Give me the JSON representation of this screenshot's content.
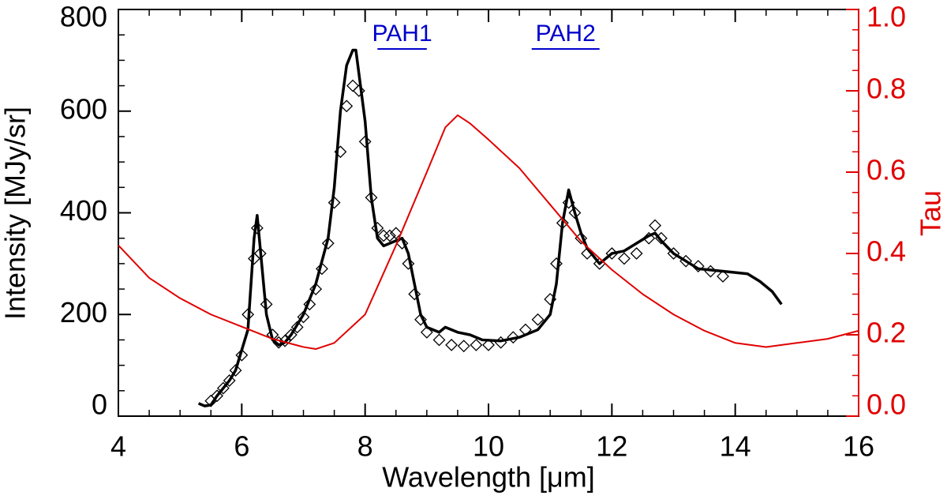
{
  "chart_data": {
    "type": "line",
    "xlabel": "Wavelength [μm]",
    "ylabel": "Intensity [MJy/sr]",
    "y2label": "Tau",
    "xlim": [
      4,
      16
    ],
    "xticks": [
      4,
      6,
      8,
      10,
      12,
      14,
      16
    ],
    "xminor_step": 0.5,
    "ylim": [
      0,
      800
    ],
    "yticks": [
      0,
      200,
      400,
      600,
      800
    ],
    "yminor_step": 50,
    "y2lim": [
      0,
      1
    ],
    "y2ticks": [
      {
        "value": 0,
        "label": "0.0"
      },
      {
        "value": 0.2,
        "label": "0.2"
      },
      {
        "value": 0.4,
        "label": "0.4"
      },
      {
        "value": 0.6,
        "label": "0.6"
      },
      {
        "value": 0.8,
        "label": "0.8"
      },
      {
        "value": 1,
        "label": "1.0"
      }
    ],
    "y2minor_step": 0.05,
    "y2color": "#e00000",
    "annotations": [
      {
        "text": "PAH1",
        "x": [
          8.2,
          9.0
        ],
        "color": "#0000cc"
      },
      {
        "text": "PAH2",
        "x": [
          10.7,
          11.8
        ],
        "color": "#0000cc"
      }
    ],
    "series": [
      {
        "style": "line",
        "color": "#000000",
        "x": [
          5.3,
          5.4,
          5.5,
          5.6,
          5.7,
          5.8,
          5.9,
          6.0,
          6.1,
          6.2,
          6.25,
          6.3,
          6.4,
          6.5,
          6.6,
          6.7,
          6.8,
          6.9,
          7.0,
          7.2,
          7.4,
          7.5,
          7.6,
          7.7,
          7.8,
          7.85,
          8.0,
          8.1,
          8.2,
          8.3,
          8.4,
          8.5,
          8.6,
          8.7,
          8.8,
          8.9,
          9.0,
          9.2,
          9.3,
          9.5,
          9.7,
          9.9,
          10.2,
          10.5,
          10.8,
          11.0,
          11.1,
          11.2,
          11.3,
          11.4,
          11.5,
          11.6,
          11.8,
          12.0,
          12.2,
          12.4,
          12.6,
          12.7,
          12.8,
          13.0,
          13.4,
          13.8,
          14.2,
          14.4,
          14.6,
          14.75
        ],
        "values": [
          25,
          20,
          22,
          40,
          55,
          70,
          90,
          130,
          170,
          350,
          395,
          330,
          200,
          150,
          140,
          145,
          160,
          180,
          200,
          260,
          350,
          450,
          600,
          690,
          720,
          720,
          580,
          430,
          350,
          335,
          340,
          345,
          350,
          320,
          260,
          200,
          175,
          165,
          175,
          165,
          160,
          150,
          148,
          155,
          170,
          200,
          260,
          380,
          445,
          400,
          360,
          330,
          300,
          320,
          325,
          340,
          355,
          360,
          345,
          320,
          290,
          285,
          280,
          265,
          245,
          220
        ]
      },
      {
        "style": "marker",
        "color": "#000000",
        "x": [
          5.5,
          5.6,
          5.7,
          5.8,
          5.9,
          6.0,
          6.1,
          6.2,
          6.25,
          6.3,
          6.4,
          6.5,
          6.6,
          6.7,
          6.8,
          6.9,
          7.0,
          7.1,
          7.2,
          7.3,
          7.4,
          7.5,
          7.6,
          7.7,
          7.8,
          7.9,
          8.0,
          8.1,
          8.2,
          8.3,
          8.4,
          8.5,
          8.6,
          8.7,
          8.8,
          8.9,
          9.0,
          9.2,
          9.4,
          9.6,
          9.8,
          10.0,
          10.2,
          10.4,
          10.6,
          10.8,
          11.0,
          11.1,
          11.2,
          11.3,
          11.4,
          11.5,
          11.6,
          11.8,
          12.0,
          12.2,
          12.4,
          12.6,
          12.7,
          12.8,
          13.0,
          13.2,
          13.4,
          13.6,
          13.8
        ],
        "values": [
          30,
          40,
          55,
          70,
          90,
          120,
          200,
          310,
          370,
          320,
          220,
          160,
          145,
          148,
          160,
          175,
          195,
          220,
          250,
          290,
          340,
          420,
          520,
          610,
          650,
          640,
          540,
          430,
          370,
          355,
          355,
          360,
          340,
          300,
          240,
          190,
          165,
          150,
          140,
          138,
          140,
          140,
          145,
          155,
          170,
          190,
          230,
          300,
          380,
          420,
          400,
          350,
          320,
          300,
          320,
          310,
          320,
          350,
          375,
          350,
          320,
          305,
          295,
          285,
          275
        ]
      },
      {
        "style": "line",
        "color": "#e00000",
        "axis": "y2",
        "x": [
          4,
          4.5,
          5,
          5.5,
          6,
          6.5,
          7,
          7.2,
          7.5,
          8,
          8.5,
          9,
          9.3,
          9.5,
          9.7,
          10,
          10.5,
          11,
          11.5,
          12,
          12.5,
          13,
          13.5,
          14,
          14.5,
          15,
          15.5,
          16
        ],
        "values": [
          0.42,
          0.34,
          0.29,
          0.25,
          0.22,
          0.19,
          0.17,
          0.165,
          0.18,
          0.25,
          0.42,
          0.6,
          0.71,
          0.74,
          0.72,
          0.68,
          0.61,
          0.52,
          0.43,
          0.36,
          0.3,
          0.25,
          0.21,
          0.18,
          0.17,
          0.18,
          0.19,
          0.21
        ]
      }
    ]
  }
}
